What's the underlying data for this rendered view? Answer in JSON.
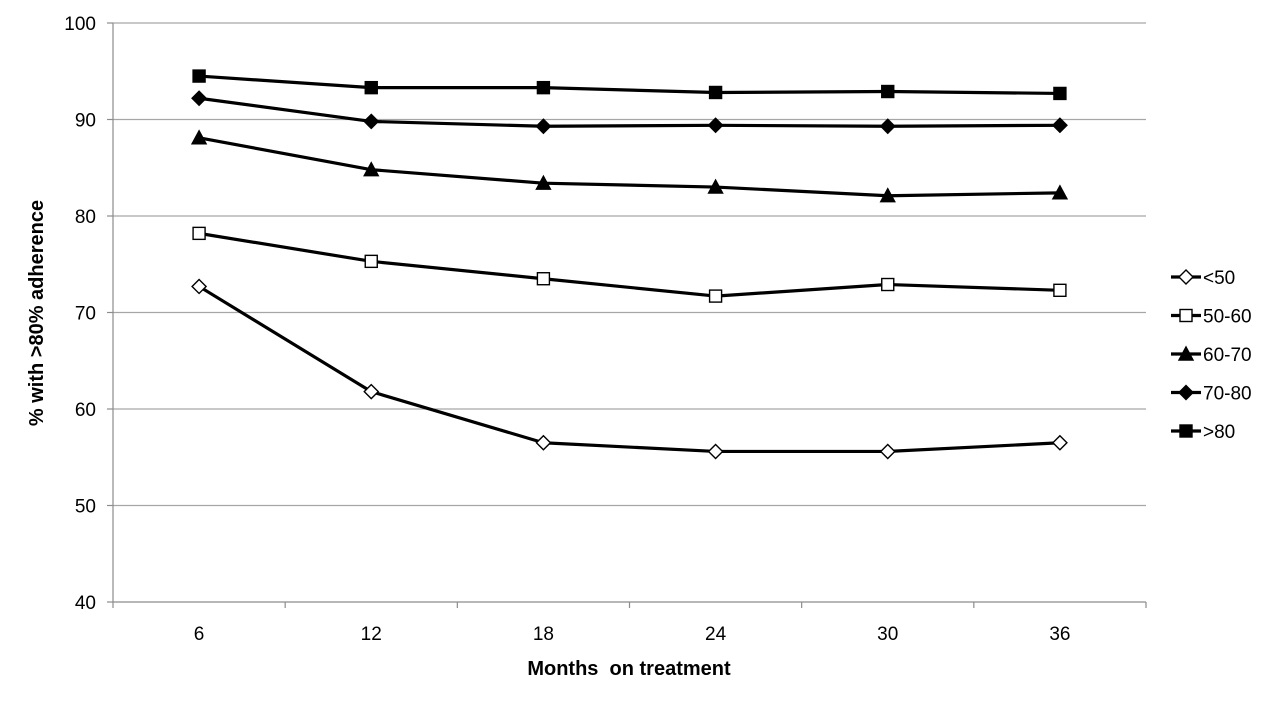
{
  "chart_data": {
    "type": "line",
    "title": "",
    "xlabel": "Months  on treatment",
    "ylabel": "% with >80% adherence",
    "x": [
      "6",
      "12",
      "18",
      "24",
      "30",
      "36"
    ],
    "ylim": [
      40,
      100
    ],
    "yticks": [
      40,
      50,
      60,
      70,
      80,
      90,
      100
    ],
    "grid": true,
    "legend_position": "right",
    "series": [
      {
        "name": "<50",
        "marker": "diamond-open",
        "values": [
          72.7,
          61.8,
          56.5,
          55.6,
          55.6,
          56.5
        ]
      },
      {
        "name": "50-60",
        "marker": "square-open",
        "values": [
          78.2,
          75.3,
          73.5,
          71.7,
          72.9,
          72.3
        ]
      },
      {
        "name": "60-70",
        "marker": "triangle-filled",
        "values": [
          88.1,
          84.8,
          83.4,
          83.0,
          82.1,
          82.4
        ]
      },
      {
        "name": "70-80",
        "marker": "diamond-filled",
        "values": [
          92.2,
          89.8,
          89.3,
          89.4,
          89.3,
          89.4
        ]
      },
      {
        "name": ">80",
        "marker": "square-filled",
        "values": [
          94.5,
          93.3,
          93.3,
          92.8,
          92.9,
          92.7
        ]
      }
    ],
    "colors": {
      "line": "#000000",
      "grid": "#a6a6a6",
      "axis": "#8c8c8c"
    }
  }
}
